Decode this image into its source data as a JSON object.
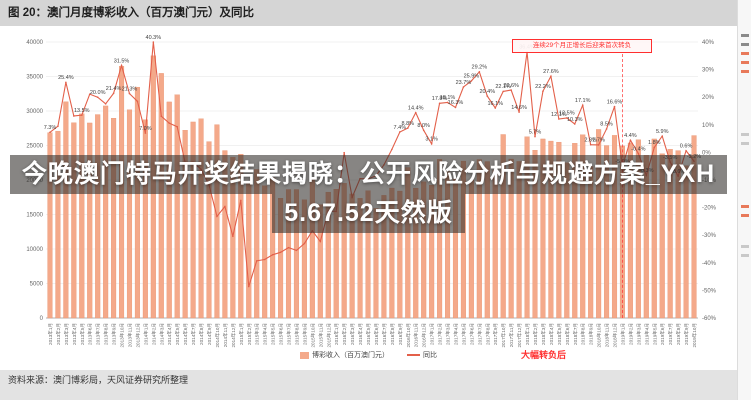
{
  "title_bar": {
    "text": "图 20：澳门月度博彩收入（百万澳门元）及同比"
  },
  "watermark": {
    "line1": "今晚澳门特马开奖结果揭晓：公开风险分析与规避方案_YXH",
    "line2": "5.67.52天然版"
  },
  "annotations": {
    "top_right": "连续29个月正增长后迎来首次转负",
    "bottom_red": "大幅转负后"
  },
  "legend": {
    "bars_label": "博彩收入（百万澳门元）",
    "line_label": "同比"
  },
  "source": {
    "text": "资料来源：澳门博彩局，天风证券研究所整理"
  },
  "colors": {
    "bar": "#F4A98A",
    "bar_border": "#E78B66",
    "line": "#E3604A",
    "data_label": "#3d3d3d",
    "grid": "#e4e4e4",
    "axis": "#9a9a9a",
    "axis_text": "#666666",
    "accent_red": "#FF2F2F"
  },
  "chart_data": {
    "type": "bar",
    "title": "澳门月度博彩收入（百万澳门元）及同比",
    "xlabel": "",
    "ylabel_left": "百万澳门元",
    "ylabel_right": "%",
    "ylim_left": [
      0,
      40000
    ],
    "ylim_right": [
      -60,
      40
    ],
    "y_ticks_left": [
      0,
      5000,
      10000,
      15000,
      20000,
      25000,
      30000,
      35000,
      40000
    ],
    "y_ticks_right": [
      40,
      30,
      20,
      10,
      0,
      -10,
      -20,
      -30,
      -40,
      -50,
      -60
    ],
    "grid": true,
    "legend_position": "bottom",
    "categories": [
      "2013年1月",
      "2013年2月",
      "2013年3月",
      "2013年4月",
      "2013年5月",
      "2013年6月",
      "2013年7月",
      "2013年8月",
      "2013年9月",
      "2013年10月",
      "2013年11月",
      "2013年12月",
      "2014年1月",
      "2014年2月",
      "2014年3月",
      "2014年4月",
      "2014年5月",
      "2014年6月",
      "2014年7月",
      "2014年8月",
      "2014年9月",
      "2014年10月",
      "2014年11月",
      "2014年12月",
      "2015年1月",
      "2015年2月",
      "2015年3月",
      "2015年4月",
      "2015年5月",
      "2015年6月",
      "2015年7月",
      "2015年8月",
      "2015年9月",
      "2015年10月",
      "2015年11月",
      "2015年12月",
      "2016年1月",
      "2016年2月",
      "2016年3月",
      "2016年4月",
      "2016年5月",
      "2016年6月",
      "2016年7月",
      "2016年8月",
      "2016年9月",
      "2016年10月",
      "2016年11月",
      "2016年12月",
      "2017年1月",
      "2017年2月",
      "2017年3月",
      "2017年4月",
      "2017年5月",
      "2017年6月",
      "2017年7月",
      "2017年8月",
      "2017年9月",
      "2017年10月",
      "2017年11月",
      "2017年12月",
      "2018年1月",
      "2018年2月",
      "2018年3月",
      "2018年4月",
      "2018年5月",
      "2018年6月",
      "2018年7月",
      "2018年8月",
      "2018年9月",
      "2018年10月",
      "2018年11月",
      "2018年12月",
      "2019年1月",
      "2019年2月",
      "2019年3月",
      "2019年4月",
      "2019年5月",
      "2019年6月",
      "2019年7月",
      "2019年8月",
      "2019年9月",
      "2019年10月"
    ],
    "series": [
      {
        "name": "博彩收入（百万澳门元）",
        "type": "bar",
        "values": [
          26864,
          27084,
          31336,
          28305,
          29589,
          28269,
          29485,
          30737,
          28963,
          36477,
          30179,
          33460,
          28739,
          38007,
          35453,
          31318,
          32354,
          27215,
          28415,
          28877,
          25564,
          28025,
          24269,
          23286,
          23748,
          19542,
          21525,
          19167,
          20350,
          17365,
          18620,
          18621,
          17130,
          20062,
          16437,
          18243,
          18674,
          19518,
          17980,
          17340,
          18443,
          15877,
          17771,
          18837,
          18401,
          21807,
          18826,
          19743,
          19259,
          22992,
          21224,
          20164,
          22742,
          19992,
          22967,
          22679,
          21408,
          26596,
          23038,
          22691,
          26265,
          24324,
          25952,
          25645,
          25488,
          22490,
          25327,
          26559,
          21952,
          27328,
          24995,
          26468,
          24942,
          25370,
          25840,
          23588,
          25952,
          23812,
          24453,
          24262,
          22079,
          26443
        ]
      },
      {
        "name": "同比",
        "type": "line",
        "unit": "%",
        "values": [
          7.3,
          9.5,
          25.4,
          13.2,
          13.5,
          21.1,
          20.0,
          17.6,
          21.4,
          31.5,
          21.3,
          18.5,
          7.0,
          40.3,
          13.1,
          10.6,
          9.3,
          -3.7,
          -3.6,
          -6.1,
          -11.7,
          -23.2,
          -19.6,
          -30.4,
          -17.4,
          -48.6,
          -39.3,
          -38.8,
          -37.1,
          -36.2,
          -34.5,
          -35.5,
          -33.0,
          -28.4,
          -32.3,
          -21.2,
          -21.4,
          -0.1,
          -16.3,
          -9.5,
          -9.6,
          -8.5,
          -4.5,
          1.1,
          7.4,
          8.8,
          14.4,
          8.0,
          3.1,
          17.8,
          18.1,
          16.3,
          23.7,
          25.9,
          29.2,
          20.4,
          16.1,
          22.1,
          22.6,
          14.6,
          36.4,
          5.7,
          22.2,
          27.6,
          12.1,
          12.5,
          10.3,
          17.1,
          2.8,
          2.7,
          8.5,
          16.6,
          -5.0,
          4.4,
          -0.4,
          -8.3,
          1.8,
          5.9,
          -3.5,
          -8.6,
          0.6,
          -3.2
        ]
      }
    ],
    "label_indices": [
      0,
      2,
      4,
      6,
      8,
      9,
      10,
      12,
      13,
      44,
      45,
      46,
      47,
      48,
      49,
      50,
      51,
      52,
      53,
      54,
      55,
      56,
      57,
      58,
      59,
      60,
      61,
      62,
      63,
      64,
      65,
      66,
      67,
      68,
      69,
      70,
      71,
      72,
      73,
      74,
      75,
      76,
      77,
      78,
      79,
      80,
      81
    ]
  }
}
